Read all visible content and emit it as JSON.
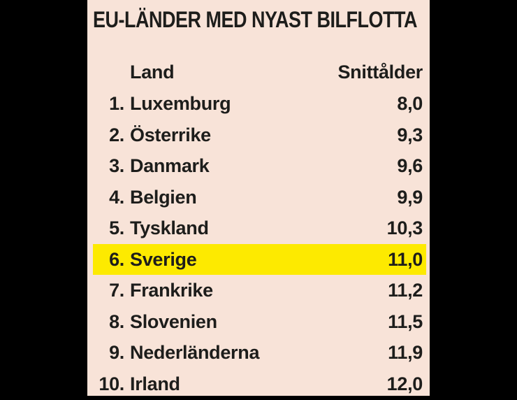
{
  "title": "EU-LÄNDER MED NYAST BILFLOTTA",
  "table": {
    "columns": {
      "country": "Land",
      "value": "Snittålder"
    },
    "rows": [
      {
        "rank": "1.",
        "country": "Luxemburg",
        "value": "8,0",
        "highlight": false
      },
      {
        "rank": "2.",
        "country": "Österrike",
        "value": "9,3",
        "highlight": false
      },
      {
        "rank": "3.",
        "country": "Danmark",
        "value": "9,6",
        "highlight": false
      },
      {
        "rank": "4.",
        "country": "Belgien",
        "value": "9,9",
        "highlight": false
      },
      {
        "rank": "5.",
        "country": "Tyskland",
        "value": "10,3",
        "highlight": false
      },
      {
        "rank": "6.",
        "country": "Sverige",
        "value": "11,0",
        "highlight": true
      },
      {
        "rank": "7.",
        "country": "Frankrike",
        "value": "11,2",
        "highlight": false
      },
      {
        "rank": "8.",
        "country": "Slovenien",
        "value": "11,5",
        "highlight": false
      },
      {
        "rank": "9.",
        "country": "Nederländerna",
        "value": "11,9",
        "highlight": false
      },
      {
        "rank": "10.",
        "country": "Irland",
        "value": "12,0",
        "highlight": false
      }
    ]
  },
  "chart_data": {
    "type": "table",
    "title": "EU-LÄNDER MED NYAST BILFLOTTA",
    "columns": [
      "Land",
      "Snittålder"
    ],
    "categories": [
      "Luxemburg",
      "Österrike",
      "Danmark",
      "Belgien",
      "Tyskland",
      "Sverige",
      "Frankrike",
      "Slovenien",
      "Nederländerna",
      "Irland"
    ],
    "ranks": [
      1,
      2,
      3,
      4,
      5,
      6,
      7,
      8,
      9,
      10
    ],
    "values": [
      8.0,
      9.3,
      9.6,
      9.9,
      10.3,
      11.0,
      11.2,
      11.5,
      11.9,
      12.0
    ],
    "value_format": "comma-decimal",
    "highlighted_category": "Sverige",
    "legend_position": "none",
    "grid": "dotted-row-separators"
  },
  "colors": {
    "background": "#000000",
    "panel": "#f8e3d8",
    "highlight": "#fdea00",
    "text": "#1d1d1b"
  }
}
